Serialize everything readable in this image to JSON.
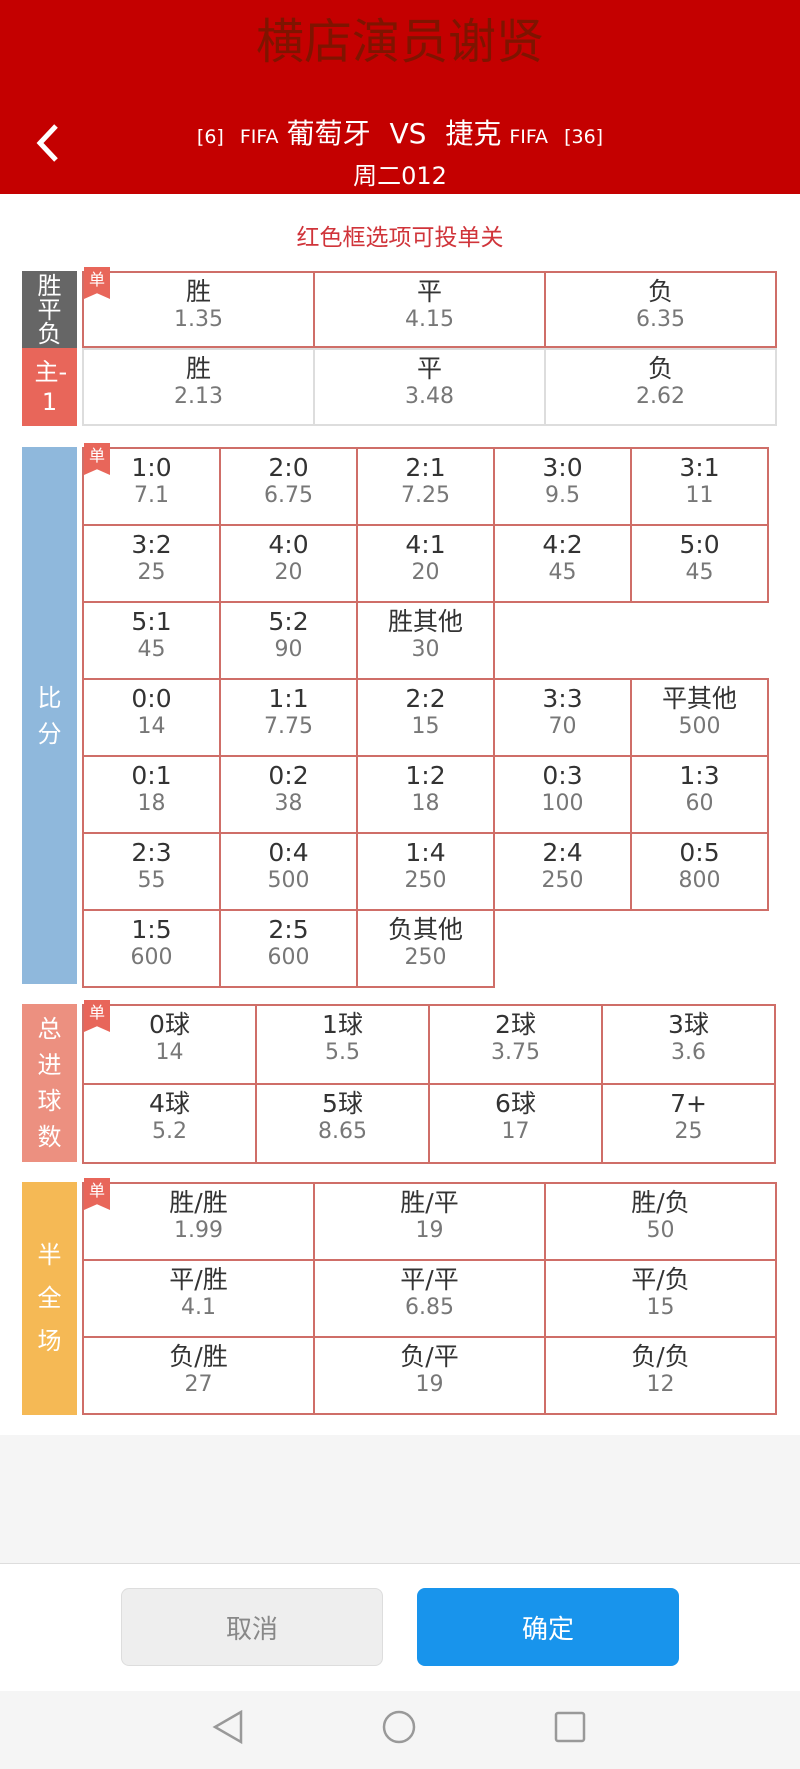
{
  "watermark": "横店演员谢贤",
  "header": {
    "home_rank": "[6]",
    "home_org": "FIFA",
    "home": "葡萄牙",
    "vs": "VS",
    "away": "捷克",
    "away_org": "FIFA",
    "away_rank": "[36]",
    "subtitle": "周二012"
  },
  "notice": "红色框选项可投单关",
  "single_badge": "单",
  "colors": {
    "header": "#c40000",
    "spf": "#666666",
    "rqspf": "#e8665a",
    "bf": "#8fb8dc",
    "zjq": "#ec9080",
    "bqc": "#f5b955",
    "confirm": "#1894ec"
  },
  "spf": {
    "label": "胜平负",
    "cells": [
      {
        "n": "胜",
        "o": "1.35"
      },
      {
        "n": "平",
        "o": "4.15"
      },
      {
        "n": "负",
        "o": "6.35"
      }
    ]
  },
  "rqspf": {
    "label": "主-1",
    "cells": [
      {
        "n": "胜",
        "o": "2.13"
      },
      {
        "n": "平",
        "o": "3.48"
      },
      {
        "n": "负",
        "o": "2.62"
      }
    ]
  },
  "bf": {
    "label": "比分",
    "rows": [
      [
        {
          "n": "1:0",
          "o": "7.1"
        },
        {
          "n": "2:0",
          "o": "6.75"
        },
        {
          "n": "2:1",
          "o": "7.25"
        },
        {
          "n": "3:0",
          "o": "9.5"
        },
        {
          "n": "3:1",
          "o": "11"
        }
      ],
      [
        {
          "n": "3:2",
          "o": "25"
        },
        {
          "n": "4:0",
          "o": "20"
        },
        {
          "n": "4:1",
          "o": "20"
        },
        {
          "n": "4:2",
          "o": "45"
        },
        {
          "n": "5:0",
          "o": "45"
        }
      ],
      [
        {
          "n": "5:1",
          "o": "45"
        },
        {
          "n": "5:2",
          "o": "90"
        },
        {
          "n": "胜其他",
          "o": "30"
        }
      ],
      [
        {
          "n": "0:0",
          "o": "14"
        },
        {
          "n": "1:1",
          "o": "7.75"
        },
        {
          "n": "2:2",
          "o": "15"
        },
        {
          "n": "3:3",
          "o": "70"
        },
        {
          "n": "平其他",
          "o": "500"
        }
      ],
      [
        {
          "n": "0:1",
          "o": "18"
        },
        {
          "n": "0:2",
          "o": "38"
        },
        {
          "n": "1:2",
          "o": "18"
        },
        {
          "n": "0:3",
          "o": "100"
        },
        {
          "n": "1:3",
          "o": "60"
        }
      ],
      [
        {
          "n": "2:3",
          "o": "55"
        },
        {
          "n": "0:4",
          "o": "500"
        },
        {
          "n": "1:4",
          "o": "250"
        },
        {
          "n": "2:4",
          "o": "250"
        },
        {
          "n": "0:5",
          "o": "800"
        }
      ],
      [
        {
          "n": "1:5",
          "o": "600"
        },
        {
          "n": "2:5",
          "o": "600"
        },
        {
          "n": "负其他",
          "o": "250"
        }
      ]
    ]
  },
  "zjq": {
    "label": "总进球数",
    "cells": [
      {
        "n": "0球",
        "o": "14"
      },
      {
        "n": "1球",
        "o": "5.5"
      },
      {
        "n": "2球",
        "o": "3.75"
      },
      {
        "n": "3球",
        "o": "3.6"
      },
      {
        "n": "4球",
        "o": "5.2"
      },
      {
        "n": "5球",
        "o": "8.65"
      },
      {
        "n": "6球",
        "o": "17"
      },
      {
        "n": "7+",
        "o": "25"
      }
    ]
  },
  "bqc": {
    "label": "半全场",
    "cells": [
      {
        "n": "胜/胜",
        "o": "1.99"
      },
      {
        "n": "胜/平",
        "o": "19"
      },
      {
        "n": "胜/负",
        "o": "50"
      },
      {
        "n": "平/胜",
        "o": "4.1"
      },
      {
        "n": "平/平",
        "o": "6.85"
      },
      {
        "n": "平/负",
        "o": "15"
      },
      {
        "n": "负/胜",
        "o": "27"
      },
      {
        "n": "负/平",
        "o": "19"
      },
      {
        "n": "负/负",
        "o": "12"
      }
    ]
  },
  "buttons": {
    "cancel": "取消",
    "confirm": "确定"
  }
}
